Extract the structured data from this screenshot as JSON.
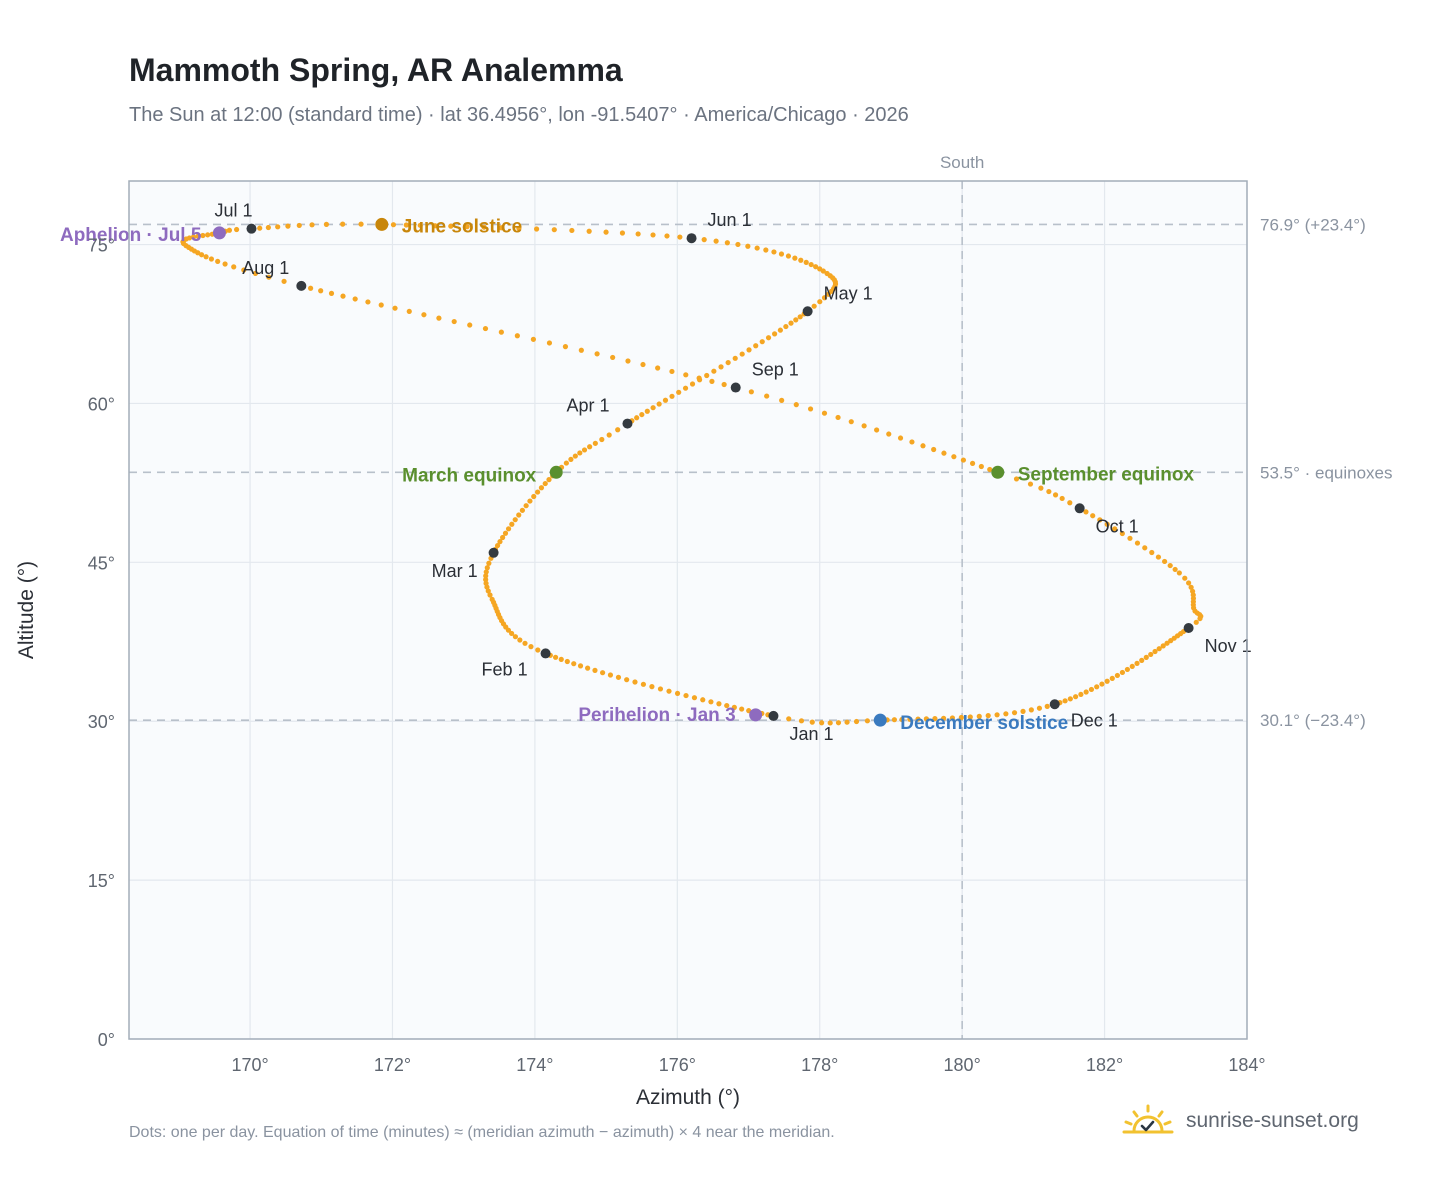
{
  "header": {
    "title": "Mammoth Spring, AR Analemma",
    "subtitle": "The Sun at 12:00 (standard time) · lat 36.4956°, lon -91.5407° · America/Chicago · 2026"
  },
  "footer": {
    "note": "Dots: one per day. Equation of time (minutes) ≈ (meridian azimuth − azimuth) × 4 near the meridian.",
    "brand": "sunrise-sunset.org",
    "brand_icon": "sun-logo-icon"
  },
  "colors": {
    "curve": "#f5a623",
    "month_marker": "#343a40",
    "solstice_june": "#c8860a",
    "solstice_december": "#3a7abf",
    "equinox": "#5a8f2e",
    "apsis": "#8e6bbf",
    "plot_background": "#f9fbfd",
    "grid": "#e3e8ee",
    "reference_line": "#b8c0ca"
  },
  "chart_data": {
    "type": "scatter",
    "xlabel": "Azimuth (°)",
    "ylabel": "Altitude (°)",
    "xlim": [
      168.3,
      184.0
    ],
    "ylim": [
      0,
      81
    ],
    "x_ticks": [
      170,
      172,
      174,
      176,
      178,
      180,
      182,
      184
    ],
    "x_tick_labels": [
      "170°",
      "172°",
      "174°",
      "176°",
      "178°",
      "180°",
      "182°",
      "184°"
    ],
    "y_ticks": [
      0,
      15,
      30,
      45,
      60,
      75
    ],
    "y_tick_labels": [
      "0°",
      "15°",
      "30°",
      "45°",
      "60°",
      "75°"
    ],
    "grid": true,
    "meridian": {
      "azimuth": 180,
      "label": "South"
    },
    "reference_lines": [
      {
        "altitude": 76.9,
        "label": "76.9° (+23.4°)"
      },
      {
        "altitude": 53.5,
        "label": "53.5° · equinoxes"
      },
      {
        "altitude": 30.1,
        "label": "30.1° (−23.4°)"
      }
    ],
    "month_markers": [
      {
        "label": "Jan 1",
        "az": 177.35,
        "alt": 30.5
      },
      {
        "label": "Feb 1",
        "az": 174.15,
        "alt": 36.4
      },
      {
        "label": "Mar 1",
        "az": 173.42,
        "alt": 45.9
      },
      {
        "label": "Apr 1",
        "az": 175.3,
        "alt": 58.1
      },
      {
        "label": "May 1",
        "az": 177.83,
        "alt": 68.7
      },
      {
        "label": "Jun 1",
        "az": 176.2,
        "alt": 75.6
      },
      {
        "label": "Jul 1",
        "az": 170.02,
        "alt": 76.5
      },
      {
        "label": "Aug 1",
        "az": 170.72,
        "alt": 71.1
      },
      {
        "label": "Sep 1",
        "az": 176.82,
        "alt": 61.5
      },
      {
        "label": "Oct 1",
        "az": 181.65,
        "alt": 50.1
      },
      {
        "label": "Nov 1",
        "az": 183.18,
        "alt": 38.8
      },
      {
        "label": "Dec 1",
        "az": 181.3,
        "alt": 31.6
      }
    ],
    "events": [
      {
        "label": "June solstice",
        "az": 171.85,
        "alt": 76.9,
        "color": "#c8860a"
      },
      {
        "label": "December solstice",
        "az": 178.85,
        "alt": 30.1,
        "color": "#3a7abf"
      },
      {
        "label": "March equinox",
        "az": 174.3,
        "alt": 53.5,
        "color": "#5a8f2e"
      },
      {
        "label": "September equinox",
        "az": 180.5,
        "alt": 53.5,
        "color": "#5a8f2e"
      },
      {
        "label": "Perihelion · Jan 3",
        "az": 177.1,
        "alt": 30.6,
        "color": "#8e6bbf"
      },
      {
        "label": "Aphelion · Jul 5",
        "az": 169.57,
        "alt": 76.1,
        "color": "#8e6bbf"
      }
    ],
    "curve_knots": [
      {
        "doy": 0,
        "az": 177.35,
        "alt": 30.5
      },
      {
        "doy": 31,
        "az": 174.15,
        "alt": 36.4
      },
      {
        "doy": 48,
        "az": 173.4,
        "alt": 41.5
      },
      {
        "doy": 59,
        "az": 173.42,
        "alt": 45.9
      },
      {
        "doy": 78,
        "az": 174.3,
        "alt": 53.5
      },
      {
        "doy": 90,
        "az": 175.3,
        "alt": 58.1
      },
      {
        "doy": 120,
        "az": 177.83,
        "alt": 68.7
      },
      {
        "doy": 134,
        "az": 178.05,
        "alt": 72.5
      },
      {
        "doy": 151,
        "az": 176.2,
        "alt": 75.6
      },
      {
        "doy": 171,
        "az": 171.85,
        "alt": 76.9
      },
      {
        "doy": 181,
        "az": 170.02,
        "alt": 76.5
      },
      {
        "doy": 185,
        "az": 169.57,
        "alt": 76.1
      },
      {
        "doy": 197,
        "az": 169.1,
        "alt": 74.9
      },
      {
        "doy": 212,
        "az": 170.72,
        "alt": 71.1
      },
      {
        "doy": 243,
        "az": 176.82,
        "alt": 61.5
      },
      {
        "doy": 265,
        "az": 180.5,
        "alt": 53.5
      },
      {
        "doy": 273,
        "az": 181.65,
        "alt": 50.1
      },
      {
        "doy": 288,
        "az": 183.05,
        "alt": 44.0
      },
      {
        "doy": 297,
        "az": 183.25,
        "alt": 40.7
      },
      {
        "doy": 304,
        "az": 183.18,
        "alt": 38.8
      },
      {
        "doy": 334,
        "az": 181.3,
        "alt": 31.6
      },
      {
        "doy": 355,
        "az": 178.85,
        "alt": 30.1
      },
      {
        "doy": 365,
        "az": 177.35,
        "alt": 30.5
      }
    ]
  }
}
